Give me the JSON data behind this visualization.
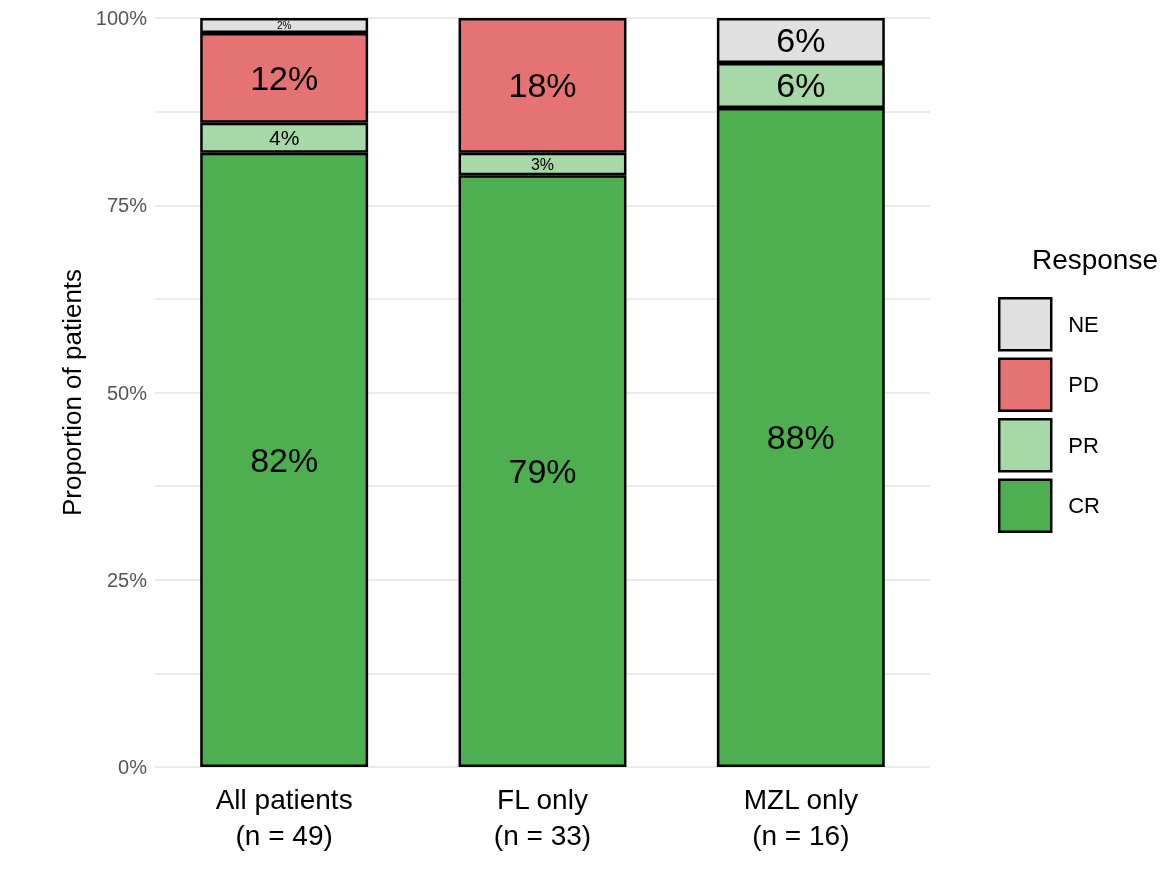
{
  "chart_data": {
    "type": "bar",
    "stacked": true,
    "ylabel": "Proportion of patients",
    "legend_title": "Response",
    "legend": "right",
    "grid": "y",
    "categories": [
      "All patients\n(n = 49)",
      "FL only\n(n = 33)",
      "MZL only\n(n = 16)"
    ],
    "ylim": [
      0,
      100
    ],
    "yticks": [
      {
        "value": 0,
        "label": "0%"
      },
      {
        "value": 12.5,
        "label": null
      },
      {
        "value": 25,
        "label": "25%"
      },
      {
        "value": 37.5,
        "label": null
      },
      {
        "value": 50,
        "label": "50%"
      },
      {
        "value": 62.5,
        "label": null
      },
      {
        "value": 75,
        "label": "75%"
      },
      {
        "value": 87.5,
        "label": null
      },
      {
        "value": 100,
        "label": "100%"
      }
    ],
    "series": [
      {
        "name": "CR",
        "color": "#4daf4f",
        "values": [
          82,
          79,
          88
        ],
        "value_labels": [
          "82%",
          "79%",
          "88%"
        ]
      },
      {
        "name": "PR",
        "color": "#a7d8a7",
        "values": [
          4,
          3,
          6
        ],
        "value_labels": [
          "4%",
          "3%",
          "6%"
        ]
      },
      {
        "name": "PD",
        "color": "#e57373",
        "values": [
          12,
          18,
          null
        ],
        "value_labels": [
          "12%",
          "18%",
          null
        ]
      },
      {
        "name": "NE",
        "color": "#e0e0e0",
        "values": [
          2,
          null,
          6
        ],
        "value_labels": [
          "2%",
          null,
          "6%"
        ]
      }
    ]
  }
}
